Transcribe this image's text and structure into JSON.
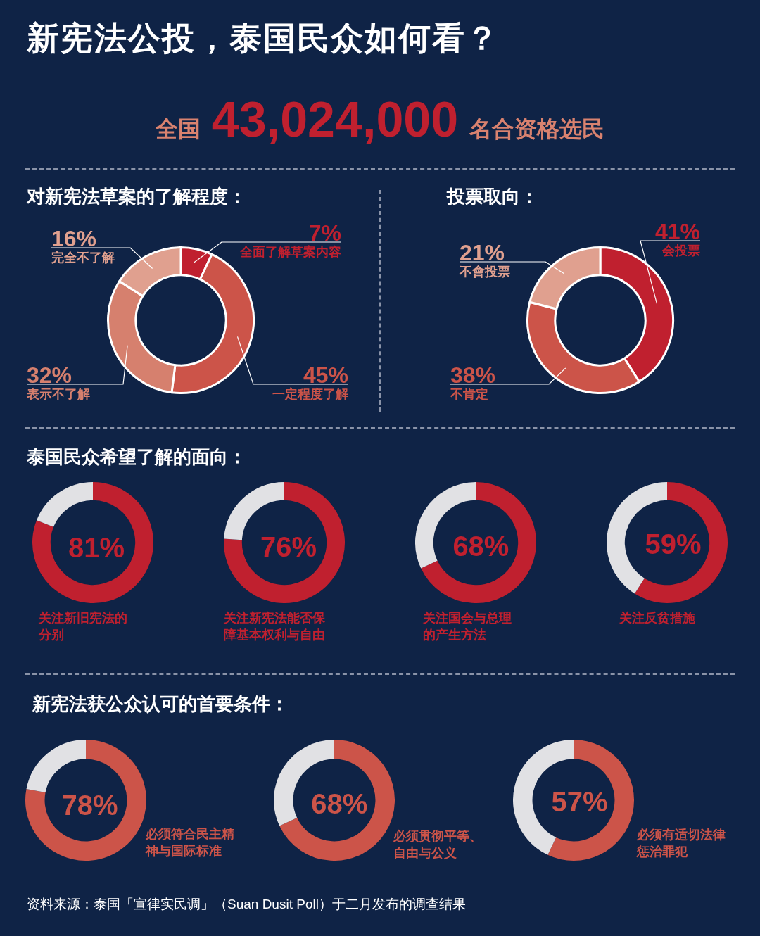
{
  "chart_data": [
    {
      "type": "other",
      "title": "新宪法公投，泰国民众如何看？",
      "annotations": [
        "全国",
        "43,024,000",
        "名合资格选民",
        "资料来源：泰国「宣律实民调」（Suan Dusit Poll）于二月发布的调查结果"
      ]
    },
    {
      "type": "donut",
      "title": "对新宪法草案的了解程度：",
      "categories": [
        "全面了解草案内容",
        "一定程度了解",
        "表示不了解",
        "完全不了解"
      ],
      "values": [
        7,
        45,
        32,
        16
      ],
      "colors": [
        "#c0202f",
        "#cc5449",
        "#d6806e",
        "#e0a08f"
      ],
      "value_labels": [
        "7%",
        "45%",
        "32%",
        "16%"
      ]
    },
    {
      "type": "donut",
      "title": "投票取向：",
      "categories": [
        "会投票",
        "不肯定",
        "不會投票"
      ],
      "values": [
        41,
        38,
        21
      ],
      "colors": [
        "#c0202f",
        "#cc5449",
        "#e0a08f"
      ],
      "value_labels": [
        "41%",
        "38%",
        "21%"
      ]
    },
    {
      "type": "donut",
      "title": "泰国民众希望了解的面向：",
      "categories": [
        "关注新旧宪法的分别",
        null
      ],
      "values": [
        81,
        19
      ],
      "colors": [
        "#c0202f",
        "#e1e1e4"
      ],
      "value_labels": [
        "81%",
        null
      ]
    },
    {
      "type": "donut",
      "categories": [
        "关注新宪法能否保障基本权利与自由",
        null
      ],
      "values": [
        76,
        24
      ],
      "colors": [
        "#c0202f",
        "#e1e1e4"
      ],
      "value_labels": [
        "76%",
        null
      ]
    },
    {
      "type": "donut",
      "categories": [
        "关注国会与总理的产生方法",
        null
      ],
      "values": [
        68,
        32
      ],
      "colors": [
        "#c0202f",
        "#e1e1e4"
      ],
      "value_labels": [
        "68%",
        null
      ]
    },
    {
      "type": "donut",
      "categories": [
        "关注反贫措施",
        null
      ],
      "values": [
        59,
        41
      ],
      "colors": [
        "#c0202f",
        "#e1e1e4"
      ],
      "value_labels": [
        "59%",
        null
      ]
    },
    {
      "type": "donut",
      "title": "新宪法获公众认可的首要条件：",
      "categories": [
        "必须符合民主精神与国际标准",
        null
      ],
      "values": [
        78,
        22
      ],
      "colors": [
        "#cc5449",
        "#e1e1e4"
      ],
      "value_labels": [
        "78%",
        null
      ]
    },
    {
      "type": "donut",
      "categories": [
        "必须贯彻平等、自由与公义",
        null
      ],
      "values": [
        68,
        32
      ],
      "colors": [
        "#cc5449",
        "#e1e1e4"
      ],
      "value_labels": [
        "68%",
        null
      ]
    },
    {
      "type": "donut",
      "categories": [
        "必须有适切法律惩治罪犯",
        null
      ],
      "values": [
        57,
        43
      ],
      "colors": [
        "#cc5449",
        "#e1e1e4"
      ],
      "value_labels": [
        "57%",
        null
      ]
    }
  ]
}
